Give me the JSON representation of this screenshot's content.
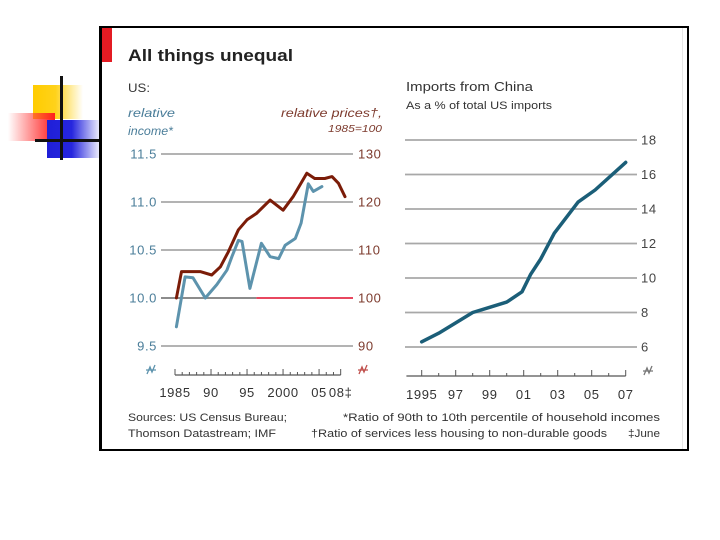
{
  "slide": {
    "logo": "decorative-squares-logo"
  },
  "chart_data": [
    {
      "type": "line",
      "title": "All things unequal",
      "subtitle": "US:",
      "left_axis_label": [
        "relative",
        "income*"
      ],
      "right_axis_label": [
        "relative prices†,",
        "1985=100"
      ],
      "xlim": [
        1985,
        2008.6
      ],
      "x_minor_step": 1,
      "x_ticks": [
        {
          "value": 1985,
          "label": "1985"
        },
        {
          "value": 1990,
          "label": "90"
        },
        {
          "value": 1995,
          "label": "95"
        },
        {
          "value": 2000,
          "label": "2000"
        },
        {
          "value": 2005,
          "label": "05"
        },
        {
          "value": 2008,
          "label": "08‡"
        }
      ],
      "y_left": {
        "range": [
          9.5,
          11.5
        ],
        "ticks": [
          11.5,
          11.0,
          10.5,
          10.0,
          9.5
        ],
        "tick_labels": [
          "11.5",
          "11.0",
          "10.5",
          "10.0",
          "9.5"
        ],
        "color": "#4a7d99"
      },
      "y_right": {
        "range": [
          90,
          130
        ],
        "ticks": [
          130,
          120,
          110,
          100,
          90
        ],
        "tick_labels": [
          "130",
          "120",
          "110",
          "100",
          "90"
        ],
        "color": "#7d3b2e"
      },
      "reference_line": {
        "axis": "right",
        "value": 100,
        "color": "#e8475f",
        "from_x": 1996.3
      },
      "grid": true,
      "axis_break": true,
      "series": [
        {
          "name": "relative income*",
          "axis": "left",
          "color": "#5d93ad",
          "points": [
            [
              1985.2,
              9.7
            ],
            [
              1986.4,
              10.22
            ],
            [
              1987.5,
              10.21
            ],
            [
              1989.2,
              10.0
            ],
            [
              1990.8,
              10.14
            ],
            [
              1992.2,
              10.29
            ],
            [
              1992.9,
              10.43
            ],
            [
              1993.8,
              10.6
            ],
            [
              1994.3,
              10.59
            ],
            [
              1995.4,
              10.1
            ],
            [
              1997.0,
              10.57
            ],
            [
              1998.2,
              10.43
            ],
            [
              1999.4,
              10.41
            ],
            [
              2000.3,
              10.55
            ],
            [
              2001.7,
              10.62
            ],
            [
              2002.5,
              10.78
            ],
            [
              2003.5,
              11.19
            ],
            [
              2004.2,
              11.11
            ],
            [
              2005.4,
              11.16
            ]
          ]
        },
        {
          "name": "relative prices† (1985=100)",
          "axis": "right",
          "color": "#7b1c08",
          "points": [
            [
              1985.2,
              100.0
            ],
            [
              1985.9,
              105.5
            ],
            [
              1988.5,
              105.5
            ],
            [
              1990.1,
              104.8
            ],
            [
              1991.3,
              106.5
            ],
            [
              1992.4,
              109.6
            ],
            [
              1993.8,
              114.2
            ],
            [
              1995.0,
              116.3
            ],
            [
              1996.3,
              117.6
            ],
            [
              1998.2,
              120.4
            ],
            [
              2000.0,
              118.3
            ],
            [
              2001.4,
              121.1
            ],
            [
              2003.3,
              126.0
            ],
            [
              2004.4,
              124.9
            ],
            [
              2005.8,
              124.9
            ],
            [
              2006.8,
              125.3
            ],
            [
              2007.7,
              123.9
            ],
            [
              2008.6,
              121.1
            ]
          ]
        }
      ]
    },
    {
      "type": "line",
      "title": "Imports from China",
      "subtitle": "As a % of total US imports",
      "xlim": [
        1994.1,
        2007.0
      ],
      "x_minor_step": 1,
      "x_ticks": [
        {
          "value": 1995,
          "label": "1995"
        },
        {
          "value": 1997,
          "label": "97"
        },
        {
          "value": 1999,
          "label": "99"
        },
        {
          "value": 2001,
          "label": "01"
        },
        {
          "value": 2003,
          "label": "03"
        },
        {
          "value": 2005,
          "label": "05"
        },
        {
          "value": 2007,
          "label": "07"
        }
      ],
      "y_right": {
        "range": [
          6,
          18
        ],
        "ticks": [
          18,
          16,
          14,
          12,
          10,
          8,
          6
        ],
        "tick_labels": [
          "18",
          "16",
          "14",
          "12",
          "10",
          "8",
          "6"
        ],
        "color": "#444444"
      },
      "grid": true,
      "axis_break": true,
      "series": [
        {
          "name": "Imports from China, % of total US imports",
          "axis": "right",
          "color": "#1b5e78",
          "points": [
            [
              1995.0,
              6.3
            ],
            [
              1996.0,
              6.8
            ],
            [
              1997.0,
              7.4
            ],
            [
              1998.0,
              8.0
            ],
            [
              1999.0,
              8.3
            ],
            [
              2000.0,
              8.6
            ],
            [
              2000.9,
              9.2
            ],
            [
              2001.4,
              10.2
            ],
            [
              2002.0,
              11.1
            ],
            [
              2002.8,
              12.6
            ],
            [
              2004.2,
              14.4
            ],
            [
              2005.2,
              15.1
            ],
            [
              2007.0,
              16.7
            ]
          ]
        }
      ]
    }
  ],
  "footer": {
    "sources": [
      "Sources: US Census Bureau;",
      "Thomson Datastream; IMF"
    ],
    "notes": [
      "*Ratio of 90th to 10th percentile of household incomes",
      "†Ratio of services less housing to non-durable goods",
      "‡June"
    ]
  },
  "colors": {
    "accent": "#e31b23",
    "income_line": "#5d93ad",
    "prices_line": "#7b1c08",
    "imports_line": "#1b5e78",
    "gridline": "#a8a8a8",
    "reference_line": "#e8475f"
  }
}
